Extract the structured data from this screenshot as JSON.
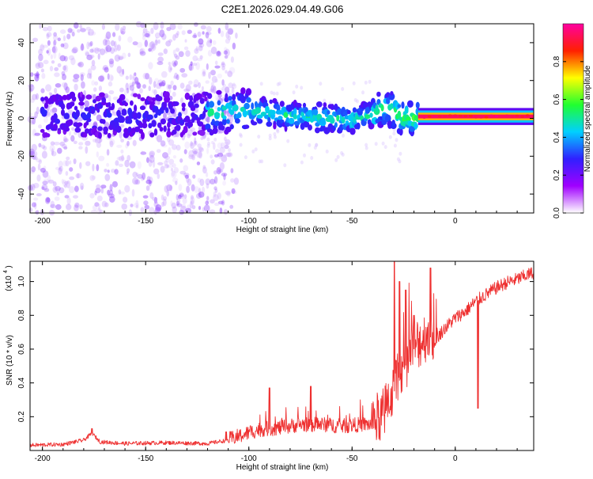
{
  "title": "C2E1.2026.029.04.49.G06",
  "chart_data": [
    {
      "type": "heatmap",
      "xlabel": "Height of straight line (km)",
      "ylabel": "Frequency (Hz)",
      "xlim": [
        -206,
        38
      ],
      "ylim": [
        -50,
        50
      ],
      "xticks": [
        -200,
        -150,
        -100,
        -50,
        0
      ],
      "xtick_labels": [
        "-200",
        "-150",
        "-100",
        "-50",
        "0"
      ],
      "yticks": [
        -40,
        -20,
        0,
        20,
        40
      ],
      "ytick_labels": [
        "-40",
        "-20",
        "0",
        "20",
        "40"
      ],
      "colorbar": {
        "label": "Normalized spectral amplitude",
        "range": [
          0,
          1
        ],
        "ticks": [
          0.0,
          0.2,
          0.4,
          0.6,
          0.8
        ],
        "tick_labels": [
          "0.0",
          "0.2",
          "0.4",
          "0.6",
          "0.8"
        ],
        "colors": [
          "#ffffff",
          "#a000ff",
          "#3020ff",
          "#00d0ff",
          "#20ff30",
          "#ffff00",
          "#ff2000",
          "#ff00a0"
        ]
      },
      "ridge": {
        "x": [
          -200,
          -150,
          -100,
          -80,
          -60,
          -50,
          -40,
          -35,
          -30,
          -25,
          -20,
          -10,
          0,
          10,
          20,
          38
        ],
        "y": [
          2,
          1.5,
          4,
          1.5,
          0,
          -1,
          2,
          6,
          4,
          0,
          0,
          1,
          1,
          1.5,
          1,
          1
        ]
      }
    },
    {
      "type": "line",
      "xlabel": "Height of straight line (km)",
      "ylabel": "SNR (10 * v/v)",
      "yscale_label": "(x10",
      "yscale_exp": "4",
      "yscale_close": ")",
      "xlim": [
        -206,
        38
      ],
      "ylim": [
        0,
        1.12
      ],
      "xticks": [
        -200,
        -150,
        -100,
        -50,
        0
      ],
      "xtick_labels": [
        "-200",
        "-150",
        "-100",
        "-50",
        "0"
      ],
      "yticks": [
        0.2,
        0.4,
        0.6,
        0.8,
        1.0
      ],
      "ytick_labels": [
        "0.2",
        "0.4",
        "0.6",
        "0.8",
        "1.0"
      ],
      "color": "#ee3030",
      "baseline": {
        "x": [
          -206,
          -190,
          -180,
          -176,
          -172,
          -160,
          -140,
          -120,
          -110,
          -100,
          -95,
          -85,
          -75,
          -65,
          -55,
          -45,
          -40,
          -35,
          -32,
          -28,
          -25,
          -22,
          -20,
          -17,
          -13,
          -10,
          -5,
          0,
          5,
          10,
          15,
          20,
          25,
          30,
          38
        ],
        "y": [
          0.03,
          0.035,
          0.06,
          0.1,
          0.05,
          0.04,
          0.045,
          0.04,
          0.06,
          0.1,
          0.12,
          0.13,
          0.15,
          0.15,
          0.14,
          0.15,
          0.15,
          0.2,
          0.3,
          0.38,
          0.48,
          0.55,
          0.6,
          0.63,
          0.68,
          0.65,
          0.72,
          0.78,
          0.82,
          0.88,
          0.92,
          0.96,
          0.99,
          1.01,
          1.05
        ]
      },
      "spikes": [
        {
          "x": -176,
          "y": 0.13
        },
        {
          "x": -111,
          "y": 0.11
        },
        {
          "x": -90,
          "y": 0.37
        },
        {
          "x": -70,
          "y": 0.38
        },
        {
          "x": -29.5,
          "y": 1.12
        },
        {
          "x": -27,
          "y": 1.0
        },
        {
          "x": -24,
          "y": 0.95
        },
        {
          "x": -20,
          "y": 0.8
        },
        {
          "x": -12,
          "y": 1.08
        },
        {
          "x": 11,
          "y": 0.25
        }
      ]
    }
  ]
}
